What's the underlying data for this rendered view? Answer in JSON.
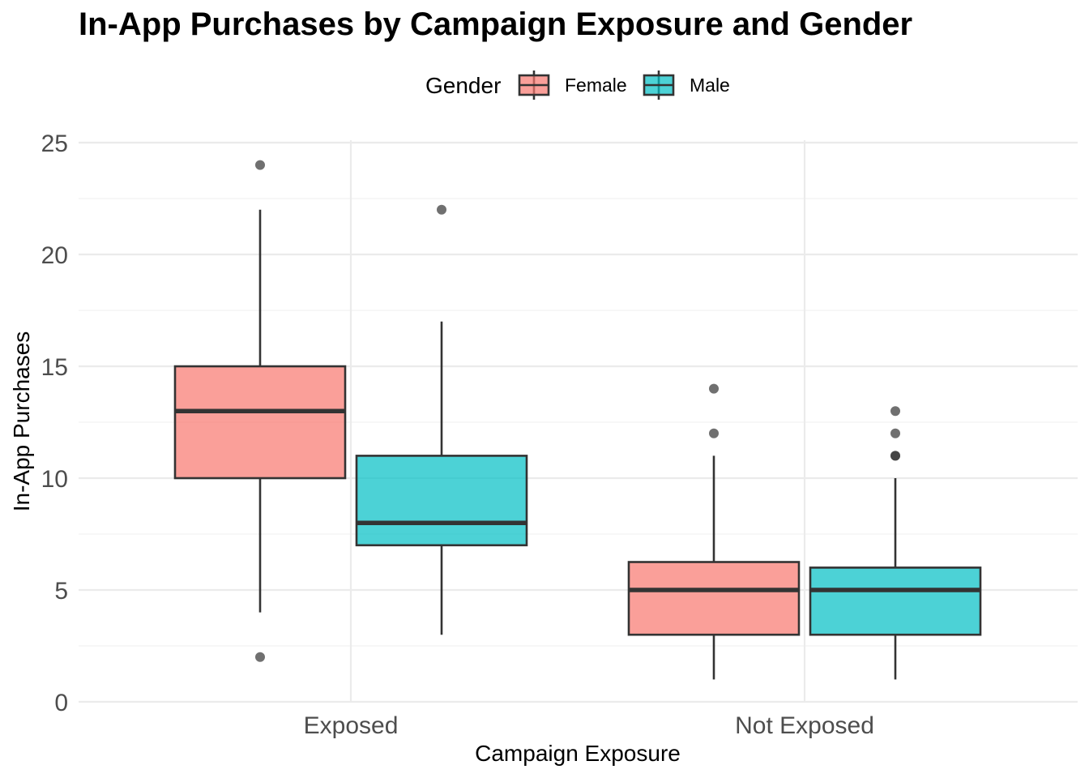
{
  "chart_data": {
    "type": "boxplot",
    "title": "In-App Purchases by Campaign Exposure and Gender",
    "xlabel": "Campaign Exposure",
    "ylabel": "In-App Purchases",
    "ylim": [
      0,
      25
    ],
    "yticks": [
      0,
      5,
      10,
      15,
      20,
      25
    ],
    "categories": [
      "Exposed",
      "Not Exposed"
    ],
    "legend": {
      "title": "Gender",
      "position": "top"
    },
    "series": [
      {
        "name": "Female",
        "color": "#F8766D",
        "boxes": [
          {
            "category": "Exposed",
            "lower_whisker": 4,
            "q1": 10,
            "median": 13,
            "q3": 15,
            "upper_whisker": 22,
            "outliers": [
              24,
              2
            ]
          },
          {
            "category": "Not Exposed",
            "lower_whisker": 1,
            "q1": 3,
            "median": 5,
            "q3": 6.25,
            "upper_whisker": 11,
            "outliers": [
              14,
              12
            ]
          }
        ]
      },
      {
        "name": "Male",
        "color": "#00BFC4",
        "boxes": [
          {
            "category": "Exposed",
            "lower_whisker": 3,
            "q1": 7,
            "median": 8,
            "q3": 11,
            "upper_whisker": 17,
            "outliers": [
              22
            ]
          },
          {
            "category": "Not Exposed",
            "lower_whisker": 1,
            "q1": 3,
            "median": 5,
            "q3": 6,
            "upper_whisker": 10,
            "outliers": [
              13,
              12,
              11,
              11
            ]
          }
        ]
      }
    ]
  }
}
